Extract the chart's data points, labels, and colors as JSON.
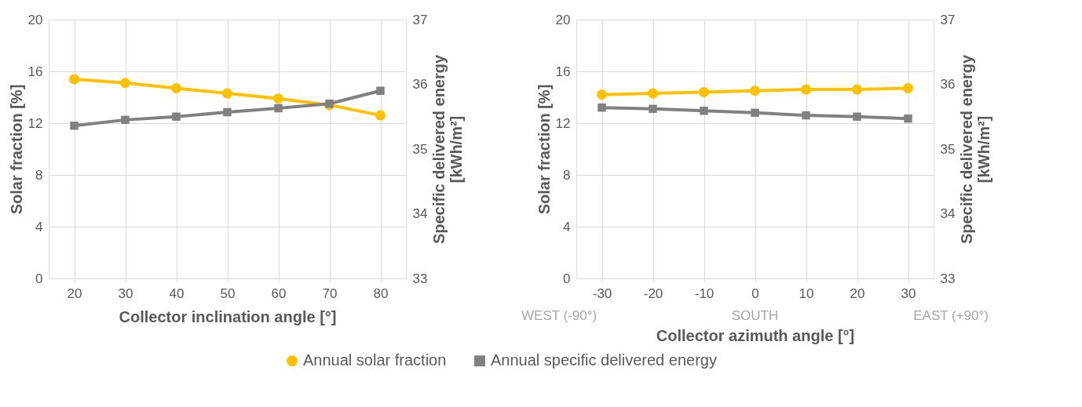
{
  "chart_data": [
    {
      "type": "line",
      "xlabel": "Collector inclination angle [°]",
      "ylabel": "Solar fraction [%]",
      "y2label": "Specific delivered energy [kWh/m²]",
      "categories": [
        "20",
        "30",
        "40",
        "50",
        "60",
        "70",
        "80"
      ],
      "series": [
        {
          "name": "Annual solar fraction",
          "color": "#ffc000",
          "marker": "circle",
          "values": [
            15.4,
            15.1,
            14.7,
            14.3,
            13.9,
            13.4,
            12.6
          ]
        },
        {
          "name": "Annual specific delivered energy",
          "color": "#808080",
          "marker": "square",
          "axis": "y2",
          "values": [
            35.36,
            35.45,
            35.5,
            35.57,
            35.63,
            35.7,
            35.9
          ]
        }
      ],
      "ylim": [
        0,
        20
      ],
      "yticks": [
        0,
        4,
        8,
        12,
        16,
        20
      ],
      "y2lim": [
        33,
        37
      ],
      "y2ticks": [
        33,
        34,
        35,
        36,
        37
      ],
      "grid": true,
      "legend": "bottom"
    },
    {
      "type": "line",
      "xlabel": "Collector azimuth angle [°]",
      "ylabel": "Solar fraction [%]",
      "y2label": "Specific delivered energy [kWh/m²]",
      "categories": [
        "-30",
        "-20",
        "-10",
        "0",
        "10",
        "20",
        "30"
      ],
      "series": [
        {
          "name": "Annual solar fraction",
          "color": "#ffc000",
          "marker": "circle",
          "values": [
            14.2,
            14.3,
            14.4,
            14.5,
            14.6,
            14.6,
            14.7
          ]
        },
        {
          "name": "Annual specific delivered energy",
          "color": "#808080",
          "marker": "square",
          "axis": "y2",
          "values": [
            35.64,
            35.62,
            35.59,
            35.56,
            35.52,
            35.5,
            35.47
          ]
        }
      ],
      "ylim": [
        0,
        20
      ],
      "yticks": [
        0,
        4,
        8,
        12,
        16,
        20
      ],
      "y2lim": [
        33,
        37
      ],
      "y2ticks": [
        33,
        34,
        35,
        36,
        37
      ],
      "grid": true,
      "legend": "bottom",
      "annotations": [
        "WEST (-90°)",
        "SOUTH",
        "EAST (+90°)"
      ]
    }
  ]
}
